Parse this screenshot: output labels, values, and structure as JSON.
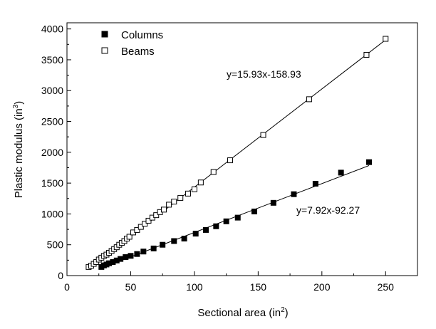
{
  "chart_data": {
    "type": "scatter",
    "title": "",
    "xlabel": "Sectional area (in",
    "xlabel_sup": "2",
    "xlabel_end": ")",
    "ylabel": "Plastic modulus (in",
    "ylabel_sup": "3",
    "ylabel_end": ")",
    "xlim": [
      0,
      275
    ],
    "ylim": [
      0,
      4100
    ],
    "xticks": [
      0,
      50,
      100,
      150,
      200,
      250
    ],
    "yticks": [
      0,
      500,
      1000,
      1500,
      2000,
      2500,
      3000,
      3500,
      4000
    ],
    "xtick_labels": [
      "0",
      "50",
      "100",
      "150",
      "200",
      "250"
    ],
    "ytick_labels": [
      "0",
      "500",
      "1000",
      "1500",
      "2000",
      "2500",
      "3000",
      "3500",
      "4000"
    ],
    "grid": false,
    "legend_position": "top-left",
    "series": [
      {
        "name": "Columns",
        "marker": "filled-square",
        "color": "#000000",
        "fit": {
          "slope": 7.92,
          "intercept": -92.27,
          "label": "y=7.92x-92.27",
          "x_range": [
            27,
            237
          ]
        },
        "x": [
          27,
          29,
          31,
          33,
          36,
          39,
          42,
          46,
          50,
          55,
          60,
          68,
          75,
          84,
          92,
          101,
          109,
          117,
          125,
          134,
          147,
          162,
          178,
          195,
          215,
          237
        ],
        "y": [
          140,
          165,
          180,
          200,
          220,
          245,
          270,
          300,
          320,
          350,
          390,
          440,
          500,
          560,
          600,
          680,
          740,
          800,
          880,
          940,
          1040,
          1180,
          1320,
          1490,
          1670,
          1840
        ]
      },
      {
        "name": "Beams",
        "marker": "open-square",
        "color": "#000000",
        "fit": {
          "slope": 15.93,
          "intercept": -158.93,
          "label": "y=15.93x-158.93",
          "x_range": [
            17,
            250
          ]
        },
        "x": [
          17,
          19,
          21,
          23,
          25,
          27,
          29,
          31,
          33,
          35,
          37,
          39,
          41,
          43,
          45,
          47,
          49,
          52,
          55,
          58,
          61,
          64,
          67,
          70,
          73,
          76,
          80,
          84,
          89,
          95,
          100,
          105,
          115,
          128,
          154,
          190,
          235,
          250
        ],
        "y": [
          140,
          160,
          190,
          220,
          260,
          290,
          320,
          340,
          370,
          400,
          430,
          460,
          500,
          530,
          560,
          600,
          630,
          700,
          740,
          790,
          840,
          890,
          940,
          980,
          1030,
          1070,
          1150,
          1200,
          1260,
          1330,
          1400,
          1510,
          1680,
          1870,
          2280,
          2860,
          3580,
          3840
        ]
      }
    ]
  }
}
